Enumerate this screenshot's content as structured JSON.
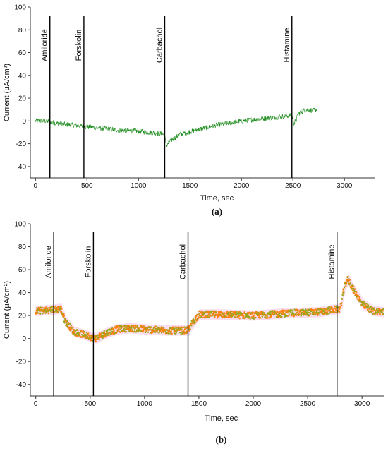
{
  "chart_data": [
    {
      "type": "line",
      "panel_label": "(a)",
      "xlabel": "Time, sec",
      "ylabel": "Current (μA/cm²)",
      "xlim": [
        -50,
        3300
      ],
      "ylim": [
        -50,
        100
      ],
      "xticks": [
        0,
        500,
        1000,
        1500,
        2000,
        2500,
        3000
      ],
      "yticks": [
        -40,
        -20,
        0,
        20,
        40,
        60,
        80,
        100
      ],
      "grid": false,
      "series_color": "#1a8a1a",
      "events": [
        {
          "label": "Amiloride",
          "x": 140
        },
        {
          "label": "Forskolin",
          "x": 470
        },
        {
          "label": "Carbachol",
          "x": 1255
        },
        {
          "label": "Histamine",
          "x": 2490
        }
      ],
      "trace": {
        "x": [
          0,
          100,
          200,
          300,
          400,
          470,
          600,
          800,
          1000,
          1200,
          1250,
          1262,
          1275,
          1300,
          1400,
          1600,
          1800,
          2000,
          2200,
          2400,
          2490,
          2500,
          2510,
          2530,
          2550,
          2600,
          2650,
          2700,
          2730
        ],
        "y": [
          0,
          0,
          -2,
          -3,
          -4,
          -5,
          -6,
          -8,
          -9,
          -11,
          -12,
          -17,
          -22,
          -18,
          -12,
          -7,
          -3,
          0,
          2,
          4,
          5,
          2,
          -2,
          0,
          6,
          9,
          10,
          9,
          10
        ]
      }
    },
    {
      "type": "scatter",
      "panel_label": "(b)",
      "xlabel": "Time, sec",
      "ylabel": "Current (μA/cm²)",
      "xlim": [
        -50,
        3200
      ],
      "ylim": [
        -50,
        100
      ],
      "xticks": [
        0,
        500,
        1000,
        1500,
        2000,
        2500,
        3000
      ],
      "yticks": [
        -40,
        -20,
        0,
        20,
        40,
        60,
        80,
        100
      ],
      "grid": false,
      "series_colors": [
        "#9aa61a",
        "#ff7f0e"
      ],
      "band_color": "#f6c9e8",
      "events": [
        {
          "label": "Amiloride",
          "x": 165
        },
        {
          "label": "Forskolin",
          "x": 530
        },
        {
          "label": "Carbachol",
          "x": 1400
        },
        {
          "label": "Histamine",
          "x": 2770
        }
      ],
      "trace": {
        "x": [
          0,
          150,
          230,
          270,
          350,
          450,
          550,
          650,
          750,
          850,
          1000,
          1200,
          1400,
          1430,
          1500,
          1700,
          2000,
          2300,
          2600,
          2800,
          2840,
          2870,
          2900,
          3000,
          3100,
          3200
        ],
        "y": [
          24,
          25,
          26,
          15,
          6,
          3,
          0,
          5,
          8,
          9,
          8,
          7,
          7,
          12,
          21,
          21,
          20,
          22,
          23,
          26,
          46,
          52,
          46,
          30,
          24,
          23
        ]
      }
    }
  ]
}
